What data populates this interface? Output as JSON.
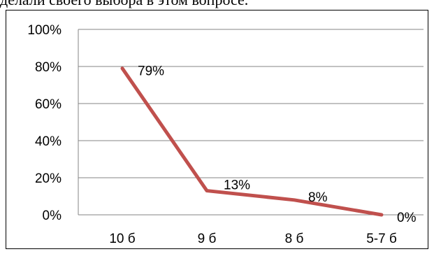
{
  "page_top_text": "делали своего выбора в этом вопросе.",
  "chart_data": {
    "type": "line",
    "title": "",
    "xlabel": "",
    "ylabel": "",
    "categories": [
      "10 б",
      "9 б",
      "8 б",
      "5-7 б"
    ],
    "series": [
      {
        "values": [
          79,
          13,
          8,
          0
        ],
        "color": "#c0504d"
      }
    ],
    "data_labels": [
      "79%",
      "13%",
      "8%",
      "0%"
    ],
    "ylim": [
      0,
      100
    ],
    "y_ticks": [
      "0%",
      "20%",
      "40%",
      "60%",
      "80%",
      "100%"
    ],
    "grid": true,
    "legend": "none",
    "colors": {
      "line": "#c0504d",
      "grid": "#868686"
    }
  }
}
